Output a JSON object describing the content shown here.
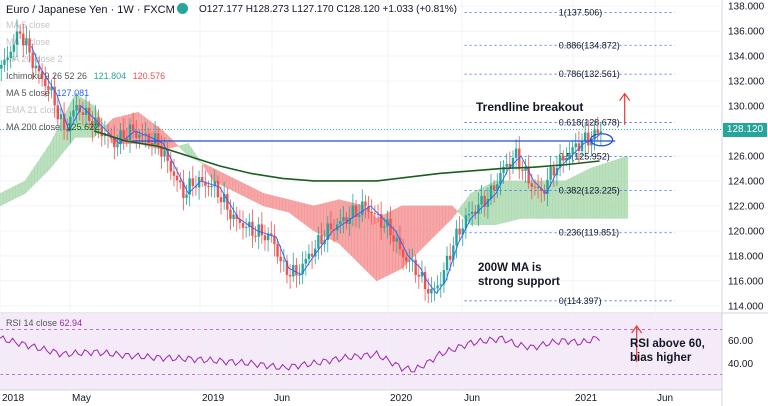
{
  "header": {
    "symbol": "Euro / Japanese Yen · 1W · FXCM",
    "ohlc": "O127.177 H128.273 L127.170 C128.120 +1.033 (+0.81%)"
  },
  "indicators": [
    {
      "label": "MA 5 close",
      "value": ""
    },
    {
      "label": "MA 5 close",
      "value": ""
    },
    {
      "label": "MA 20 close 2",
      "value": ""
    },
    {
      "label": "Ichimoku 9 26 52 26",
      "value": "121.804",
      "value2": "120.576"
    },
    {
      "label": "MA 5 close",
      "value": "127.081"
    },
    {
      "label": "EMA 21 close",
      "value": ""
    },
    {
      "label": "MA 200 close",
      "value": "125.622"
    }
  ],
  "annotations": {
    "trendline": "Trendline breakout",
    "support_1": "200W MA is",
    "support_2": "strong support",
    "rsi_1": "RSI above 60,",
    "rsi_2": "bias higher"
  },
  "rsi": {
    "label": "RSI 14 close",
    "value": "62.94"
  },
  "price_badge": "128.120",
  "colors": {
    "up": "#26a69a",
    "down": "#ef5350",
    "cloud_green": "#a5d6a7",
    "cloud_red": "#f48a8a",
    "ma200": "#1b5e20",
    "ma5": "#2962ff",
    "rsi": "#9c27b0",
    "fib": "#2962ff",
    "arrow": "#e53935"
  },
  "chart_data": {
    "type": "candlestick",
    "title": "Euro / Japanese Yen · 1W · FXCM",
    "ylim": [
      113.5,
      138.5
    ],
    "y_ticks": [
      "138.000",
      "136.000",
      "134.000",
      "132.000",
      "130.000",
      "128.000",
      "126.000",
      "124.000",
      "122.000",
      "120.000",
      "118.000",
      "116.000",
      "114.000"
    ],
    "x_ticks": [
      "2018",
      "May",
      "2019",
      "Jun",
      "2020",
      "Jun",
      "2021",
      "Jun"
    ],
    "price_path": [
      [
        0,
        133
      ],
      [
        6,
        136
      ],
      [
        11,
        133
      ],
      [
        16,
        131
      ],
      [
        20,
        128
      ],
      [
        24,
        130
      ],
      [
        30,
        128.5
      ],
      [
        36,
        127
      ],
      [
        41,
        128
      ],
      [
        46,
        127.5
      ],
      [
        50,
        127
      ],
      [
        54,
        125
      ],
      [
        58,
        123
      ],
      [
        62,
        124
      ],
      [
        68,
        123.5
      ],
      [
        74,
        121
      ],
      [
        80,
        120
      ],
      [
        86,
        119.5
      ],
      [
        90,
        117
      ],
      [
        94,
        116.5
      ],
      [
        98,
        118
      ],
      [
        104,
        120
      ],
      [
        110,
        121
      ],
      [
        116,
        122
      ],
      [
        120,
        121
      ],
      [
        124,
        120
      ],
      [
        128,
        118
      ],
      [
        132,
        117
      ],
      [
        134,
        116
      ],
      [
        137,
        115
      ],
      [
        140,
        116
      ],
      [
        144,
        119
      ],
      [
        148,
        121
      ],
      [
        152,
        122
      ],
      [
        156,
        123
      ],
      [
        160,
        125
      ],
      [
        164,
        126
      ],
      [
        168,
        124
      ],
      [
        172,
        123
      ],
      [
        176,
        125
      ],
      [
        180,
        126
      ],
      [
        184,
        127
      ],
      [
        188,
        127.5
      ],
      [
        191,
        128.1
      ]
    ],
    "ichimoku_cloud_a": [
      [
        0,
        123
      ],
      [
        8,
        124
      ],
      [
        16,
        127
      ],
      [
        24,
        131
      ],
      [
        30,
        130
      ],
      [
        36,
        127
      ],
      [
        44,
        127
      ],
      [
        52,
        126.5
      ],
      [
        60,
        127
      ],
      [
        68,
        124
      ],
      [
        76,
        123
      ],
      [
        84,
        122
      ],
      [
        92,
        121.5
      ],
      [
        100,
        120
      ],
      [
        108,
        119
      ],
      [
        116,
        117
      ],
      [
        120,
        116
      ],
      [
        128,
        117
      ],
      [
        136,
        119
      ],
      [
        144,
        121
      ],
      [
        150,
        123
      ],
      [
        158,
        124
      ],
      [
        166,
        124
      ],
      [
        174,
        124
      ],
      [
        180,
        124
      ],
      [
        188,
        125
      ],
      [
        200,
        126
      ]
    ],
    "ichimoku_cloud_b": [
      [
        0,
        122
      ],
      [
        8,
        123
      ],
      [
        16,
        125
      ],
      [
        24,
        127.5
      ],
      [
        30,
        127.5
      ],
      [
        36,
        129
      ],
      [
        44,
        129.5
      ],
      [
        52,
        128
      ],
      [
        60,
        126
      ],
      [
        68,
        125
      ],
      [
        76,
        124
      ],
      [
        84,
        123
      ],
      [
        92,
        122.5
      ],
      [
        100,
        122
      ],
      [
        108,
        122.5
      ],
      [
        116,
        122
      ],
      [
        120,
        121
      ],
      [
        128,
        122
      ],
      [
        136,
        122
      ],
      [
        144,
        122
      ],
      [
        150,
        120.5
      ],
      [
        158,
        120.5
      ],
      [
        166,
        121
      ],
      [
        174,
        121
      ],
      [
        180,
        121
      ],
      [
        188,
        121
      ],
      [
        200,
        121
      ]
    ],
    "ma200": [
      [
        30,
        128
      ],
      [
        40,
        127.2
      ],
      [
        50,
        126.8
      ],
      [
        60,
        126
      ],
      [
        70,
        125.2
      ],
      [
        80,
        124.6
      ],
      [
        90,
        124.2
      ],
      [
        100,
        124
      ],
      [
        110,
        124
      ],
      [
        120,
        124
      ],
      [
        130,
        124.3
      ],
      [
        140,
        124.6
      ],
      [
        150,
        124.8
      ],
      [
        160,
        125
      ],
      [
        170,
        125.1
      ],
      [
        180,
        125.3
      ],
      [
        191,
        125.6
      ]
    ],
    "trendline": [
      [
        42,
        127.2
      ],
      [
        196,
        127.2
      ]
    ],
    "fib_levels": [
      {
        "label": "1(137.506)",
        "value": 137.506
      },
      {
        "label": "0.886(134.872)",
        "value": 134.872
      },
      {
        "label": "0.786(132.561)",
        "value": 132.561
      },
      {
        "label": "0.618(128.678)",
        "value": 128.678
      },
      {
        "label": "0.5(125.952)",
        "value": 125.952
      },
      {
        "label": "0.382(123.225)",
        "value": 123.225
      },
      {
        "label": "0.236(119.851)",
        "value": 119.851
      },
      {
        "label": "0(114.397)",
        "value": 114.397
      }
    ],
    "rsi_y_ticks": [
      "60.00",
      "40.00"
    ],
    "rsi_path": [
      [
        0,
        62
      ],
      [
        10,
        55
      ],
      [
        20,
        48
      ],
      [
        30,
        50
      ],
      [
        40,
        47
      ],
      [
        50,
        45
      ],
      [
        60,
        44
      ],
      [
        70,
        42
      ],
      [
        80,
        40
      ],
      [
        90,
        36
      ],
      [
        100,
        40
      ],
      [
        110,
        45
      ],
      [
        120,
        48
      ],
      [
        124,
        42
      ],
      [
        128,
        36
      ],
      [
        132,
        34
      ],
      [
        136,
        40
      ],
      [
        140,
        48
      ],
      [
        150,
        58
      ],
      [
        160,
        62
      ],
      [
        165,
        56
      ],
      [
        170,
        54
      ],
      [
        175,
        58
      ],
      [
        180,
        60
      ],
      [
        185,
        58
      ],
      [
        191,
        62.94
      ]
    ]
  }
}
